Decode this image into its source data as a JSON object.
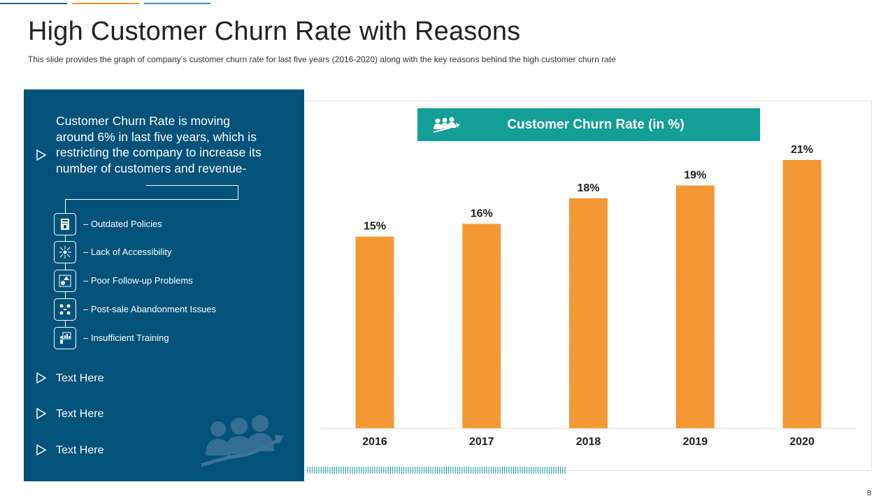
{
  "title": "High Customer Churn Rate with Reasons",
  "subtitle": "This slide provides  the graph of company’s customer churn rate for last five  years (2016-2020)  along with the key reasons behind the high customer churn rate",
  "colors": {
    "panel": "#02527a",
    "accent": "#139e98",
    "bar": "#f3922a",
    "line1": "#1f5f8b",
    "line2": "#f3922a",
    "line3": "#3b8bc9"
  },
  "left_panel": {
    "intro": "Customer Churn Rate is moving around 6% in last five years, which is restricting the company to increase its number of customers and revenue-",
    "reasons": [
      {
        "icon": "policy-document-icon",
        "label": "–   Outdated Policies"
      },
      {
        "icon": "accessibility-network-icon",
        "label": "–   Lack of Accessibility"
      },
      {
        "icon": "follow-up-shapes-icon",
        "label": "–   Poor Follow-up Problems"
      },
      {
        "icon": "abandonment-nodes-icon",
        "label": "–   Post-sale Abandonment Issues"
      },
      {
        "icon": "training-chart-icon",
        "label": "–   Insufficient Training"
      }
    ],
    "text_items": [
      "Text Here",
      "Text Here",
      "Text Here"
    ]
  },
  "chart_data": {
    "type": "bar",
    "title": "Customer Churn Rate (in %)",
    "categories": [
      "2016",
      "2017",
      "2018",
      "2019",
      "2020"
    ],
    "values": [
      15,
      16,
      18,
      19,
      21
    ],
    "labels": [
      "15%",
      "16%",
      "18%",
      "19%",
      "21%"
    ],
    "ylim": [
      0,
      21.6
    ],
    "xlabel": "",
    "ylabel": "",
    "grid": false
  },
  "page_number": "8"
}
